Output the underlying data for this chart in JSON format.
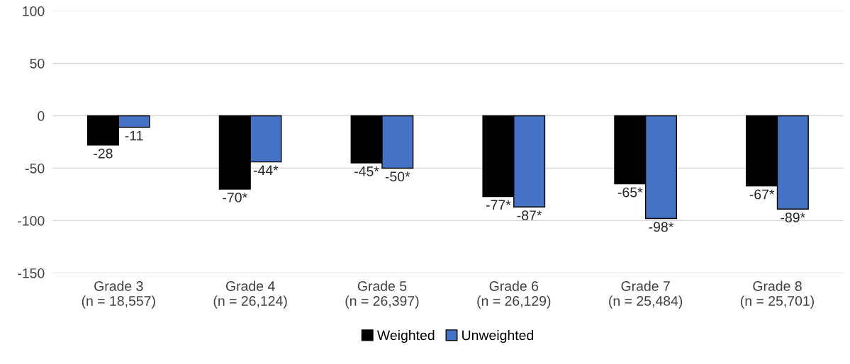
{
  "chart_data": {
    "type": "bar",
    "categories": [
      "Grade 3\n(n = 18,557)",
      "Grade 4\n(n = 26,124)",
      "Grade 5\n(n = 26,397)",
      "Grade 6\n(n = 26,129)",
      "Grade 7\n(n = 25,484)",
      "Grade 8\n(n = 25,701)"
    ],
    "series": [
      {
        "name": "Weighted",
        "color": "#000000",
        "values": [
          -28,
          -70,
          -45,
          -77,
          -65,
          -67
        ],
        "value_labels": [
          "-28",
          "-70*",
          "-45*",
          "-77*",
          "-65*",
          "-67*"
        ]
      },
      {
        "name": "Unweighted",
        "color": "#4472c4",
        "values": [
          -11,
          -44,
          -50,
          -87,
          -98,
          -89
        ],
        "value_labels": [
          "-11",
          "-44*",
          "-50*",
          "-87*",
          "-98*",
          "-89*"
        ]
      }
    ],
    "ylim": [
      -150,
      100
    ],
    "yticks": [
      -150,
      -100,
      -50,
      0,
      50,
      100
    ],
    "grid": "y",
    "legend": "bottom"
  }
}
